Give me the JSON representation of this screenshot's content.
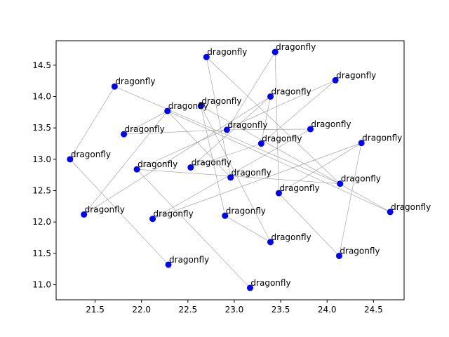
{
  "chart_data": {
    "type": "scatter",
    "title": "",
    "xlabel": "",
    "ylabel": "",
    "xlim": [
      21.08,
      24.83
    ],
    "ylim": [
      10.76,
      14.89
    ],
    "x_ticks": [
      21.5,
      22.0,
      22.5,
      23.0,
      23.5,
      24.0,
      24.5
    ],
    "x_tick_labels": [
      "21.5",
      "22.0",
      "22.5",
      "23.0",
      "23.5",
      "24.0",
      "24.5"
    ],
    "y_ticks": [
      11.0,
      11.5,
      12.0,
      12.5,
      13.0,
      13.5,
      14.0,
      14.5
    ],
    "y_tick_labels": [
      "11.0",
      "11.5",
      "12.0",
      "12.5",
      "13.0",
      "13.5",
      "14.0",
      "14.5"
    ],
    "grid": false,
    "marker_color": "#0000ff",
    "edge_color": "#999999",
    "points": [
      {
        "label": "dragonfly",
        "x": 22.7,
        "y": 14.63
      },
      {
        "label": "dragonfly",
        "x": 23.44,
        "y": 14.71
      },
      {
        "label": "dragonfly",
        "x": 21.71,
        "y": 14.16
      },
      {
        "label": "dragonfly",
        "x": 24.09,
        "y": 14.26
      },
      {
        "label": "dragonfly",
        "x": 23.39,
        "y": 14.0
      },
      {
        "label": "dragonfly",
        "x": 22.64,
        "y": 13.85
      },
      {
        "label": "dragonfly",
        "x": 22.28,
        "y": 13.77
      },
      {
        "label": "dragonfly",
        "x": 22.92,
        "y": 13.47
      },
      {
        "label": "dragonfly",
        "x": 23.82,
        "y": 13.48
      },
      {
        "label": "dragonfly",
        "x": 21.81,
        "y": 13.4
      },
      {
        "label": "dragonfly",
        "x": 23.29,
        "y": 13.25
      },
      {
        "label": "dragonfly",
        "x": 24.37,
        "y": 13.26
      },
      {
        "label": "dragonfly",
        "x": 21.23,
        "y": 13.0
      },
      {
        "label": "dragonfly",
        "x": 22.53,
        "y": 12.87
      },
      {
        "label": "dragonfly",
        "x": 21.95,
        "y": 12.84
      },
      {
        "label": "dragonfly",
        "x": 22.96,
        "y": 12.71
      },
      {
        "label": "dragonfly",
        "x": 24.14,
        "y": 12.61
      },
      {
        "label": "dragonfly",
        "x": 23.48,
        "y": 12.46
      },
      {
        "label": "dragonfly",
        "x": 24.68,
        "y": 12.16
      },
      {
        "label": "dragonfly",
        "x": 21.38,
        "y": 12.12
      },
      {
        "label": "dragonfly",
        "x": 22.12,
        "y": 12.05
      },
      {
        "label": "dragonfly",
        "x": 22.9,
        "y": 12.1
      },
      {
        "label": "dragonfly",
        "x": 23.39,
        "y": 11.68
      },
      {
        "label": "dragonfly",
        "x": 24.13,
        "y": 11.46
      },
      {
        "label": "dragonfly",
        "x": 22.29,
        "y": 11.32
      },
      {
        "label": "dragonfly",
        "x": 23.17,
        "y": 10.95
      }
    ],
    "edges": [
      [
        0,
        16
      ],
      [
        1,
        7
      ],
      [
        1,
        17
      ],
      [
        2,
        12
      ],
      [
        2,
        16
      ],
      [
        3,
        10
      ],
      [
        3,
        14
      ],
      [
        4,
        19
      ],
      [
        5,
        18
      ],
      [
        5,
        21
      ],
      [
        5,
        22
      ],
      [
        6,
        9
      ],
      [
        6,
        15
      ],
      [
        6,
        18
      ],
      [
        7,
        9
      ],
      [
        7,
        8
      ],
      [
        8,
        20
      ],
      [
        10,
        13
      ],
      [
        11,
        17
      ],
      [
        11,
        23
      ],
      [
        12,
        24
      ],
      [
        13,
        4
      ],
      [
        14,
        25
      ],
      [
        14,
        16
      ],
      [
        17,
        23
      ],
      [
        19,
        6
      ],
      [
        20,
        11
      ],
      [
        21,
        22
      ],
      [
        15,
        0
      ],
      [
        4,
        10
      ]
    ]
  }
}
